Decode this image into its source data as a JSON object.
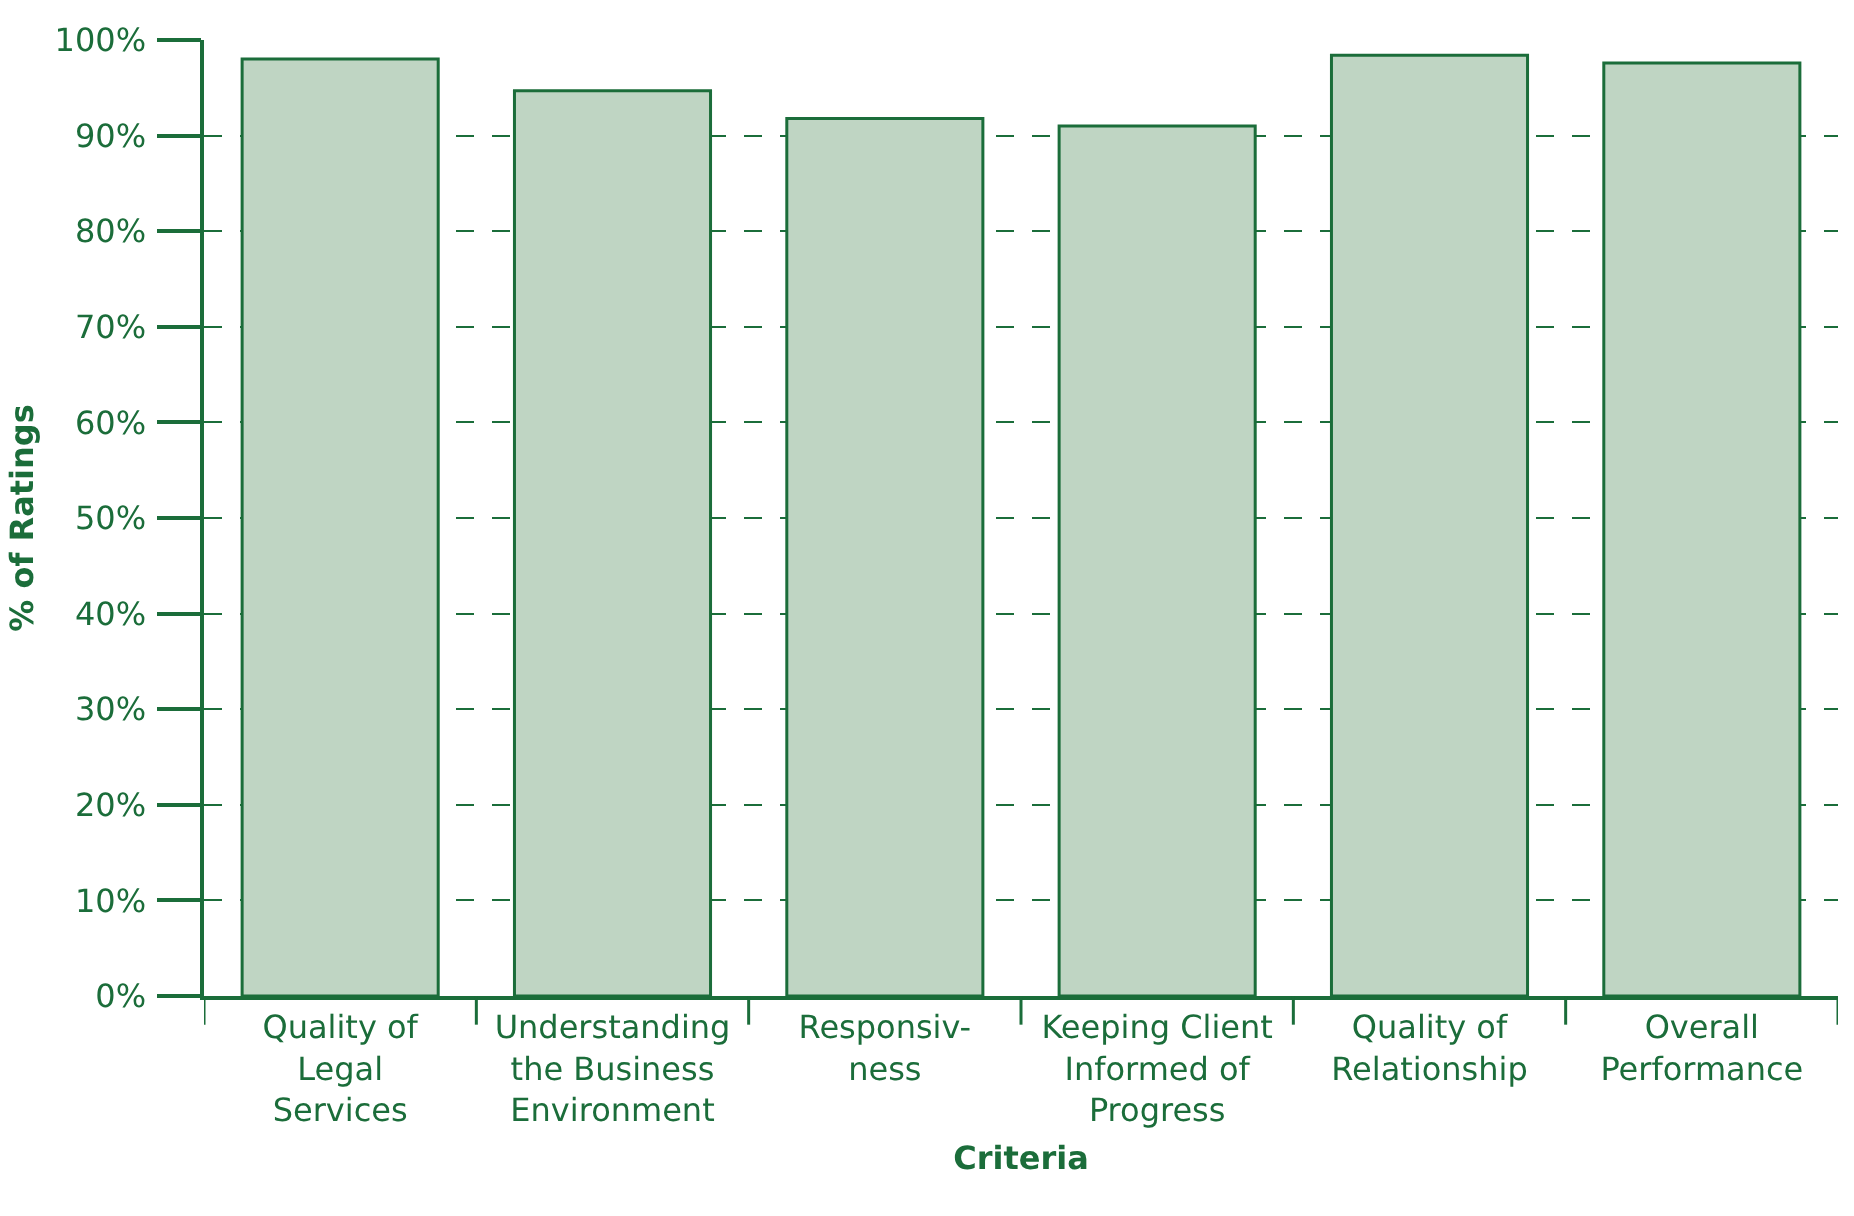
{
  "chart_data": {
    "type": "bar",
    "xlabel": "Criteria",
    "ylabel": "% of Ratings",
    "categories": [
      "Quality of\nLegal\nServices",
      "Understanding\nthe Business\nEnvironment",
      "Responsiv-\nness",
      "Keeping Client\nInformed of\nProgress",
      "Quality of\nRelationship",
      "Overall\nPerformance"
    ],
    "values": [
      98,
      94.7,
      91.8,
      91,
      98.4,
      97.6
    ],
    "color": "#bfd5c3",
    "ylim": [
      0,
      100
    ],
    "yticks": [
      {
        "value": 0,
        "label": "0%"
      },
      {
        "value": 10,
        "label": "10%"
      },
      {
        "value": 20,
        "label": "20%"
      },
      {
        "value": 30,
        "label": "30%"
      },
      {
        "value": 40,
        "label": "40%"
      },
      {
        "value": 50,
        "label": "50%"
      },
      {
        "value": 60,
        "label": "60%"
      },
      {
        "value": 70,
        "label": "70%"
      },
      {
        "value": 80,
        "label": "80%"
      },
      {
        "value": 90,
        "label": "90%"
      },
      {
        "value": 100,
        "label": "100%"
      }
    ],
    "grid": "y",
    "line_style": "dashed",
    "legend": false
  }
}
